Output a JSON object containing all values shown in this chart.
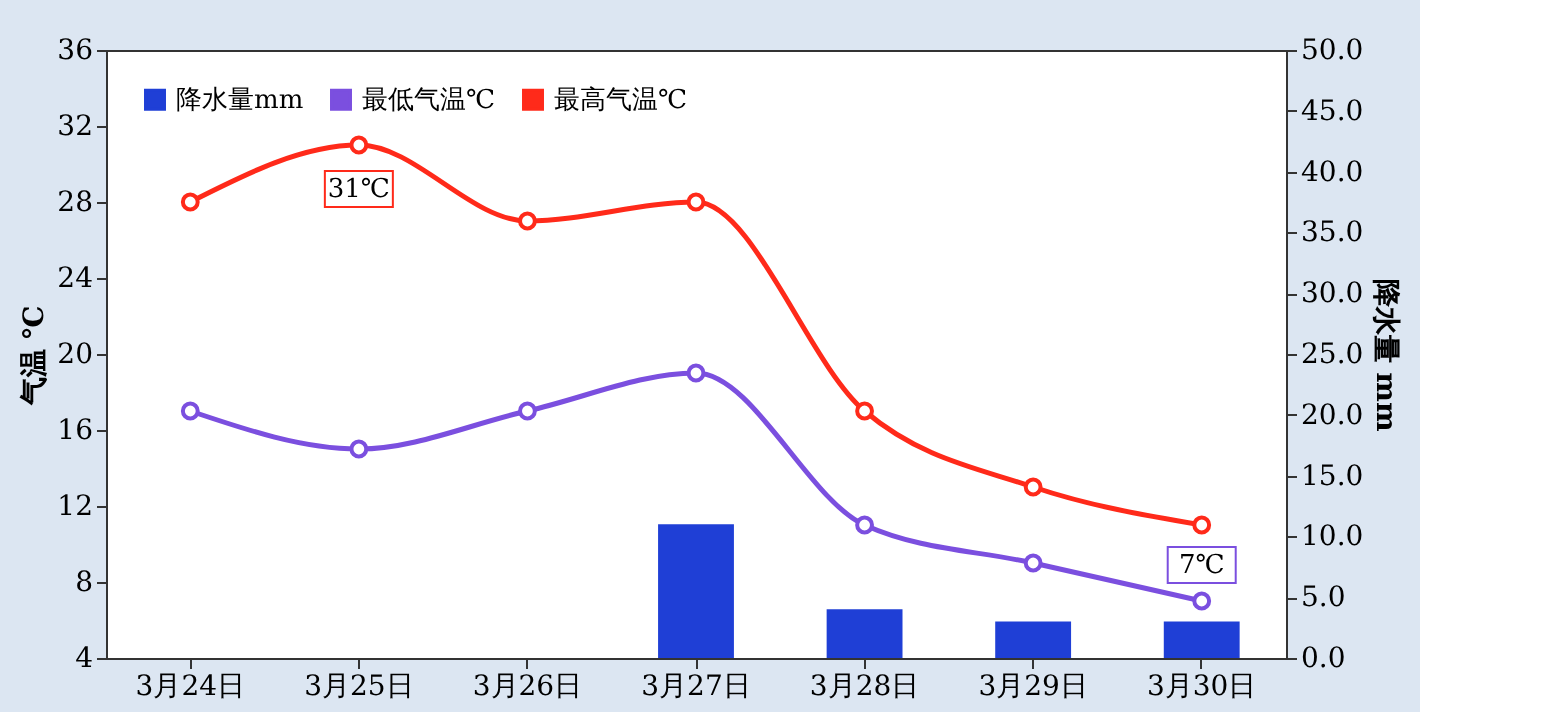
{
  "chart_data": {
    "type": "line",
    "categories": [
      "3月24日",
      "3月25日",
      "3月26日",
      "3月27日",
      "3月28日",
      "3月29日",
      "3月30日"
    ],
    "series": [
      {
        "name": "降水量mm",
        "type": "bar",
        "axis": "y2",
        "color": "#1f3fd6",
        "values": [
          null,
          null,
          null,
          11,
          4,
          3,
          3
        ]
      },
      {
        "name": "最低气温℃",
        "color": "#7b4fdf",
        "values": [
          17,
          15,
          17,
          19,
          11,
          9,
          7
        ]
      },
      {
        "name": "最高气温℃",
        "color": "#ff2a1a",
        "values": [
          28,
          31,
          27,
          28,
          17,
          13,
          11
        ]
      }
    ],
    "ylabel": "气温 ℃",
    "y2label": "降水量 mm",
    "ylim": [
      4,
      36
    ],
    "yticks": [
      4,
      8,
      12,
      16,
      20,
      24,
      28,
      32,
      36
    ],
    "y2lim": [
      0,
      50
    ],
    "y2ticks": [
      {
        "value": 0,
        "label": "0.0"
      },
      {
        "value": 5,
        "label": "5.0"
      },
      {
        "value": 10,
        "label": "10.0"
      },
      {
        "value": 15,
        "label": "15.0"
      },
      {
        "value": 20,
        "label": "20.0"
      },
      {
        "value": 25,
        "label": "25.0"
      },
      {
        "value": 30,
        "label": "30.0"
      },
      {
        "value": 35,
        "label": "35.0"
      },
      {
        "value": 40,
        "label": "40.0"
      },
      {
        "value": 45,
        "label": "45.0"
      },
      {
        "value": 50,
        "label": "50.0"
      }
    ],
    "annotations": [
      {
        "text": "31℃",
        "x": "3月25日",
        "y": 31
      },
      {
        "text": "7℃",
        "x": "3月30日",
        "y": 7
      }
    ],
    "marker": "circle",
    "line_style": "solid",
    "grid": false,
    "legend": "top left"
  }
}
